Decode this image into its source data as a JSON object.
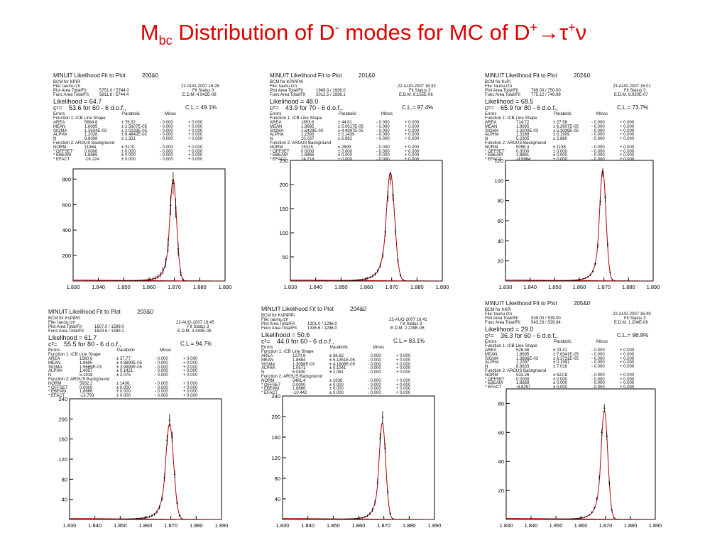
{
  "slide": {
    "title_parts": [
      "M",
      "bc",
      " Distribution of D",
      "-",
      " modes  for MC of  D",
      "+",
      "→τ",
      "+",
      "ν"
    ]
  },
  "colors": {
    "title": "#e00000",
    "text": "#111111",
    "fit_curve": "#b00000",
    "data": "#000000"
  },
  "chart_data": [
    {
      "type": "line",
      "title": "MINUIT Likelihood Fit to Plot",
      "plot_id": "200&0",
      "bcm": "BCM for KPiPi",
      "file": "File: taunu.rzn",
      "date": "22-AUG-2007 16:28",
      "plot_area": [
        "Plot Area Total/Fit",
        "5751.0 / 5744.0"
      ],
      "func_area": [
        "Func Area Total/Fit",
        "5811.8 / 5744.4"
      ],
      "fit_status": "Fit Status  3",
      "edm": "E.D.M. 4.942E-08",
      "likelihood": "Likelihood =   64.7",
      "chi2": "53.6 for  60 -  6 d.o.f.,",
      "cl": "C.L.= 49.1%",
      "params": [
        [
          "AREA",
          "5684.6",
          "±  76.32",
          "-  0.000",
          "+  0.000"
        ],
        [
          "MEAN",
          "1.8695",
          "±  2.5607E-05",
          "-  0.000",
          "+  0.000"
        ],
        [
          "SIGMA",
          "1.3504E-03",
          "±  2.0233E-05",
          "-  0.000",
          "+  0.000"
        ],
        [
          "ALPHA",
          "1.2028",
          "±  6.4842E-02",
          "-  0.000",
          "+  0.000"
        ],
        [
          "N",
          "6.6008",
          "±  1.321",
          "-  0.000",
          "+  0.000"
        ],
        [
          "NORM",
          "11964.",
          "±  3170.",
          "-  0.000",
          "+  0.000"
        ],
        [
          "* OFFSET",
          "0.0000",
          "±  0.000",
          "-  0.000",
          "+  0.000"
        ],
        [
          "* EBEAM",
          "1.8865",
          "±  0.000",
          "-  0.000",
          "+  0.000"
        ],
        [
          "* EFACT",
          "-16.124",
          "±  0.000",
          "-  0.000",
          "+  0.000"
        ]
      ],
      "xlim": [
        1.83,
        1.89
      ],
      "ylim": [
        0,
        880
      ],
      "x_ticks": [
        "1.830",
        "1.840",
        "1.850",
        "1.860",
        "1.870",
        "1.880",
        "1.890"
      ],
      "y_ticks": [
        200,
        400,
        600,
        800
      ],
      "peak": 800,
      "mean": 1.8695,
      "sigma": 0.00135
    },
    {
      "type": "line",
      "title": "MINUIT Likelihood Fit to Plot",
      "plot_id": "201&0",
      "bcm": "BCM for KPiPiPi0",
      "file": "File: taunu.rzn",
      "date": "22-AUG-2007 16:33",
      "plot_area": [
        "Plot Area Total/Fit",
        "1949.0 / 1936.0"
      ],
      "func_area": [
        "Func Area Total/Fit",
        "2012.5 / 1936.1"
      ],
      "fit_status": "Fit Status  3",
      "edm": "E.D.M. 8.155E-06",
      "likelihood": "Likelihood =   48.0",
      "chi2": "43.9 for  70 -  6 d.o.f.,",
      "cl": "C.L.= 97.4%",
      "params": [
        [
          "AREA",
          "1853.8",
          "±  44.81",
          "-  0.000",
          "+  0.000"
        ],
        [
          "MEAN",
          "1.8695",
          "±  5.0617E-05",
          "-  0.000",
          "+  0.000"
        ],
        [
          "SIGMA",
          "1.6429E-03",
          "±  4.4997E-05",
          "-  0.000",
          "+  0.000"
        ],
        [
          "ALPHA",
          "1.2393",
          "±  0.1439",
          "-  0.000",
          "+  0.000"
        ],
        [
          "N",
          "10.037",
          "±  6.862",
          "-  0.000",
          "+  0.000"
        ],
        [
          "NORM",
          "15315.",
          "±  2699.",
          "-  0.000",
          "+  0.000"
        ],
        [
          "* OFFSET",
          "0.0000",
          "±  0.000",
          "-  0.000",
          "+  0.000"
        ],
        [
          "* EBEAM",
          "1.8865",
          "±  0.000",
          "-  0.000",
          "+  0.000"
        ],
        [
          "* EFACT",
          "14.718",
          "±  0.000",
          "-  0.000",
          "+  0.000"
        ]
      ],
      "xlim": [
        1.83,
        1.89
      ],
      "ylim": [
        0,
        250
      ],
      "x_ticks": [
        "1.830",
        "1.840",
        "1.850",
        "1.860",
        "1.870",
        "1.880",
        "1.890"
      ],
      "y_ticks": [
        50,
        100,
        150,
        200,
        250
      ],
      "peak": 225,
      "mean": 1.8695,
      "sigma": 0.00164
    },
    {
      "type": "line",
      "title": "MINUIT Likelihood Fit to Plot",
      "plot_id": "202&0",
      "bcm": "BCM for KsPi",
      "file": "File: taunu.rzn",
      "date": "23-AUG-2007 16:01",
      "plot_area": [
        "Plot Area Total/Fit",
        "769.00 / 750.00"
      ],
      "func_area": [
        "Func Area Total/Fit",
        "775.12 / 749.98"
      ],
      "fit_status": "Fit Status  3",
      "edm": "E.D.M. 8.920E-07",
      "likelihood": "Likelihood =   68.5",
      "chi2": "65.9 for  80 -  6 d.o.f.,",
      "cl": "C.L.= 73.7%",
      "params": [
        [
          "AREA",
          "714.72",
          "±  27.58",
          "-  0.000",
          "+  0.000"
        ],
        [
          "MEAN",
          "1.8695",
          "±  6.2607E-05",
          "-  0.000",
          "+  0.000"
        ],
        [
          "SIGMA",
          "1.3200E-03",
          "±  5.3039E-05",
          "-  0.000",
          "+  0.000"
        ],
        [
          "ALPHA",
          "1.3168",
          "±  0.1909",
          "-  0.000",
          "+  0.000"
        ],
        [
          "N",
          "5.2305",
          "±  2.880",
          "-  0.000",
          "+  0.000"
        ],
        [
          "NORM",
          "5056.3",
          "±  1158.",
          "-  0.000",
          "+  0.000"
        ],
        [
          "* OFFSET",
          "0.0000",
          "±  0.000",
          "-  0.000",
          "+  0.000"
        ],
        [
          "* EBEAM",
          "1.8861",
          "±  0.000",
          "-  0.000",
          "+  0.000"
        ],
        [
          "* EFACT",
          "-9.9964",
          "±  0.000",
          "-  0.000",
          "+  0.000"
        ]
      ],
      "xlim": [
        1.83,
        1.89
      ],
      "ylim": [
        0,
        120
      ],
      "x_ticks": [
        "1.830",
        "1.840",
        "1.850",
        "1.860",
        "1.870",
        "1.880",
        "1.890"
      ],
      "y_ticks": [
        20,
        40,
        60,
        80,
        100,
        120
      ],
      "peak": 110,
      "mean": 1.8695,
      "sigma": 0.00132
    },
    {
      "type": "line",
      "title": "MINUIT Likelihood Fit to Plot",
      "plot_id": "203&0",
      "bcm": "BCM for KsPiPi0",
      "file": "File: taunu.rzn",
      "date": "22-AUG-2007 16:45",
      "plot_area": [
        "Plot Area Total/Fit",
        "1607.0 / 1599.0"
      ],
      "func_area": [
        "Func Area Total/Fit",
        "1623.6 / 1599.1"
      ],
      "fit_status": "Fit Status  3",
      "edm": "E.D.M. 3.443E-06",
      "likelihood": "Likelihood =   61.7",
      "chi2": "55.5 for  80 -  6 d.o.f.,",
      "cl": "C.L.= 94.7%",
      "params": [
        [
          "AREA",
          "1580.6",
          "±  37.77",
          "-  0.000",
          "+  0.000"
        ],
        [
          "MEAN",
          "1.8695",
          "±  4.8890E-05",
          "-  0.000",
          "+  0.000"
        ],
        [
          "SIGMA",
          "1.5669E-03",
          "±  3.9990E-05",
          "-  0.000",
          "+  0.000"
        ],
        [
          "ALPHA",
          "1.4057",
          "±  0.1421",
          "-  0.000",
          "+  0.000"
        ],
        [
          "N",
          "5.1918",
          "±  2.075",
          "-  0.000",
          "+  0.000"
        ],
        [
          "NORM",
          "5932.2",
          "±  1436.",
          "-  0.000",
          "+  0.000"
        ],
        [
          "* OFFSET",
          "0.0000",
          "±  0.000",
          "-  0.000",
          "+  0.000"
        ],
        [
          "* EBEAM",
          "1.8866",
          "±  0.000",
          "-  0.000",
          "+  0.000"
        ],
        [
          "* EFACT",
          "-13.793",
          "±  0.000",
          "-  0.000",
          "+  0.000"
        ]
      ],
      "xlim": [
        1.83,
        1.89
      ],
      "ylim": [
        0,
        240
      ],
      "x_ticks": [
        "1.830",
        "1.840",
        "1.850",
        "1.860",
        "1.870",
        "1.880",
        "1.890"
      ],
      "y_ticks": [
        40,
        80,
        120,
        160,
        200,
        240
      ],
      "peak": 190,
      "mean": 1.8695,
      "sigma": 0.00157
    },
    {
      "type": "line",
      "title": "MINUIT Likelihood Fit to Plot",
      "plot_id": "204&0",
      "bcm": "BCM for KsPiPiPi",
      "file": "File: taunu.rzn",
      "date": "22-AUG-2007 16:41",
      "plot_area": [
        "Plot Area Total/Fit",
        "1301.0 / 1296.0"
      ],
      "func_area": [
        "Func Area Total/Fit",
        "1335.6 / 1296.0"
      ],
      "fit_status": "Fit Status  3",
      "edm": "E.D.M. 2.239E-06",
      "likelihood": "Likelihood =   50.6",
      "chi2": "44.0 for  60 -  6 d.o.f.,",
      "cl": "C.L.= 83.1%",
      "params": [
        [
          "AREA",
          "1270.9",
          "±  36.62",
          "-  0.000",
          "+  0.000"
        ],
        [
          "MEAN",
          "1.8694",
          "±  5.1351E-05",
          "-  0.000",
          "+  0.000"
        ],
        [
          "SIGMA",
          "1.3058E-03",
          "±  4.1606E-05",
          "-  0.000",
          "+  0.000"
        ],
        [
          "ALPHA",
          "1.0571",
          "±  0.1041",
          "-  0.000",
          "+  0.000"
        ],
        [
          "N",
          "6.0830",
          "±  2.081",
          "-  0.000",
          "+  0.000"
        ],
        [
          "NORM",
          "5461.4",
          "±  1936.",
          "-  0.000",
          "+  0.000"
        ],
        [
          "* OFFSET",
          "0.0000",
          "±  0.000",
          "-  0.000",
          "+  0.000"
        ],
        [
          "* EBEAM",
          "1.8866",
          "±  0.000",
          "-  0.000",
          "+  0.000"
        ],
        [
          "* EFACT",
          "-10.442",
          "±  0.000",
          "-  0.000",
          "+  0.000"
        ]
      ],
      "xlim": [
        1.83,
        1.89
      ],
      "ylim": [
        0,
        240
      ],
      "x_ticks": [
        "1.830",
        "1.840",
        "1.850",
        "1.860",
        "1.870",
        "1.880",
        "1.890"
      ],
      "y_ticks": [
        40,
        80,
        120,
        160,
        200,
        240
      ],
      "peak": 188,
      "mean": 1.8694,
      "sigma": 0.00131
    },
    {
      "type": "line",
      "title": "MINUIT Likelihood Fit to Plot",
      "plot_id": "205&0",
      "bcm": "BCM for KKPi",
      "file": "File: taunu.rzn",
      "date": "22-AUG-2007 16:49",
      "plot_area": [
        "Plot Area Total/Fit",
        "539.00 / 539.00"
      ],
      "func_area": [
        "Func Area Total/Fit",
        "543.23 / 539.04"
      ],
      "fit_status": "Fit Status  3",
      "edm": "E.D.M. 1.204E-06",
      "likelihood": "Likelihood =   29.0",
      "chi2": "36.3 for  60 -  6 d.o.f.,",
      "cl": "C.L.= 96.9%",
      "params": [
        [
          "AREA",
          "526.46",
          "±  23.31",
          "-  0.000",
          "+  0.000"
        ],
        [
          "MEAN",
          "1.8695",
          "±  7.8341E-05",
          "-  0.000",
          "+  0.000"
        ],
        [
          "SIGMA",
          "1.3666E-03",
          "±  6.3731E-05",
          "-  0.000",
          "+  0.000"
        ],
        [
          "ALPHA",
          "1.2097",
          "±  0.1991",
          "-  0.000",
          "+  0.000"
        ],
        [
          "N",
          "8.6833",
          "±  7.016",
          "-  0.000",
          "+  0.000"
        ],
        [
          "NORM",
          "533.26",
          "±  622.8",
          "-  0.000",
          "+  0.000"
        ],
        [
          "* OFFSET",
          "0.0000",
          "±  0.000",
          "-  0.000",
          "+  0.000"
        ],
        [
          "* EBEAM",
          "1.8869",
          "±  0.000",
          "-  0.000",
          "+  0.000"
        ],
        [
          "* EFACT",
          "-8.6297",
          "±  0.000",
          "-  0.000",
          "+  0.000"
        ]
      ],
      "xlim": [
        1.83,
        1.89
      ],
      "ylim": [
        0,
        90
      ],
      "x_ticks": [
        "1.830",
        "1.840",
        "1.850",
        "1.860",
        "1.870",
        "1.880",
        "1.890"
      ],
      "y_ticks": [
        20,
        40,
        60,
        80
      ],
      "peak": 75,
      "mean": 1.8695,
      "sigma": 0.00137
    }
  ],
  "labels": {
    "errors": "Errors",
    "parabolic": "Parabolic",
    "minos": "Minos",
    "fn1": "Function  1: rCB Line Shape",
    "fn2": "Function  2: ARGUS Background",
    "chi2_prefix": "c²="
  }
}
